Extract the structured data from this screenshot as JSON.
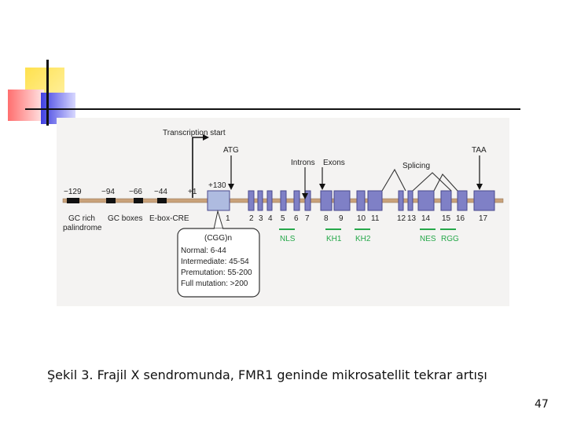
{
  "diagram": {
    "transcription_start": "Transcription start",
    "atg": "ATG",
    "introns": "Introns",
    "exons": "Exons",
    "splicing": "Splicing",
    "taa": "TAA",
    "plus130": "+130",
    "positions": [
      "−129",
      "−94",
      "−66",
      "−44",
      "+1"
    ],
    "promoter_labels": [
      "GC rich",
      "palindrome",
      "GC boxes",
      "E-box-CRE"
    ],
    "exon_numbers": [
      "1",
      "2",
      "3",
      "4",
      "5",
      "6",
      "7",
      "8",
      "9",
      "10",
      "11",
      "12",
      "13",
      "14",
      "15",
      "16",
      "17"
    ],
    "domains": [
      "NLS",
      "KH1",
      "KH2",
      "NES",
      "RGG"
    ],
    "box_title": "(CGG)n",
    "box_lines": [
      "Normal: 6-44",
      "Intermediate: 45-54",
      "Premutation: 55-200",
      "Full mutation: >200"
    ]
  },
  "caption": "Şekil 3. Frajil X sendromunda, FMR1 geninde mikrosatellit tekrar artışı",
  "page_number": "47",
  "colors": {
    "exon_fill": "#7f80c6",
    "exon_stroke": "#4a4a8e",
    "first_exon_fill": "#aebbe0",
    "gene_line": "#c9a27a",
    "domain_text": "#26a84a",
    "figure_bg": "#f4f3f2"
  }
}
